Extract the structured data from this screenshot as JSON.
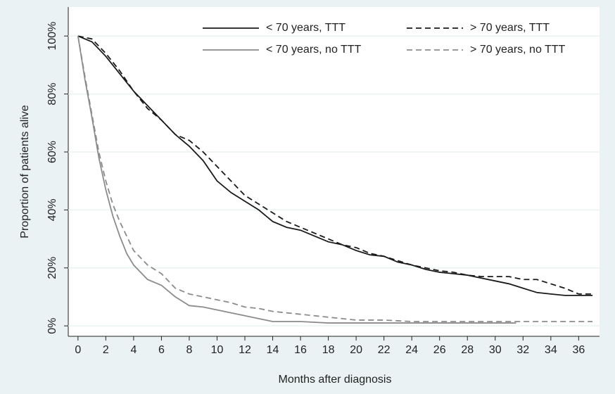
{
  "chart_data": {
    "type": "line",
    "x_label": "Months after diagnosis",
    "y_label": "Proportion of patients alive",
    "xlim": [
      -0.7,
      37.5
    ],
    "ylim": [
      -3.6,
      110
    ],
    "xticks": [
      0,
      2,
      4,
      6,
      8,
      10,
      12,
      14,
      16,
      18,
      20,
      22,
      24,
      26,
      28,
      30,
      32,
      34,
      36
    ],
    "yticks": [
      {
        "value": 0,
        "label": "0%"
      },
      {
        "value": 20,
        "label": "20%"
      },
      {
        "value": 40,
        "label": "40%"
      },
      {
        "value": 60,
        "label": "60%"
      },
      {
        "value": 80,
        "label": "80%"
      },
      {
        "value": 100,
        "label": "100%"
      }
    ],
    "grid": true,
    "series": [
      {
        "name": "< 70 years, TTT",
        "color": "#1a1a1a",
        "dashed": false,
        "x": [
          0,
          1,
          2,
          3,
          4,
          5,
          6,
          7,
          8,
          9,
          10,
          11,
          12,
          13,
          14,
          15,
          16,
          17,
          18,
          19,
          20,
          21,
          22,
          23,
          24,
          25,
          26,
          27,
          28,
          29,
          30,
          31,
          32,
          33,
          34,
          35,
          36,
          37
        ],
        "values": [
          100,
          98,
          93,
          87,
          81,
          76,
          71,
          66,
          62,
          57,
          50,
          46,
          43,
          40,
          36,
          34,
          33,
          31,
          29,
          28,
          26,
          24.5,
          24,
          22,
          21,
          19.5,
          18.5,
          18,
          17.5,
          16.5,
          15.5,
          14.5,
          13,
          11.5,
          11,
          10.5,
          10.5,
          10.5
        ]
      },
      {
        "name": "< 70 years, no TTT",
        "color": "#8c8c8c",
        "dashed": false,
        "x": [
          0,
          0.5,
          1,
          1.5,
          2,
          2.5,
          3,
          3.5,
          4,
          5,
          6,
          7,
          8,
          9,
          10,
          11,
          12,
          13,
          14,
          16,
          18,
          20,
          24,
          28,
          31.5
        ],
        "values": [
          100,
          85,
          72,
          58,
          47,
          38,
          31,
          25,
          21,
          16,
          14,
          10,
          7,
          6.5,
          5.5,
          4.5,
          3.5,
          2.5,
          1.5,
          1.5,
          1,
          1,
          1,
          1,
          1
        ]
      },
      {
        "name": "> 70 years, TTT",
        "color": "#1a1a1a",
        "dashed": true,
        "x": [
          0,
          1,
          2,
          3,
          4,
          5,
          6,
          7,
          8,
          9,
          10,
          11,
          12,
          13,
          14,
          15,
          16,
          17,
          18,
          19,
          20,
          21,
          22,
          23,
          24,
          25,
          26,
          27,
          28,
          29,
          30,
          31,
          32,
          33,
          34,
          35,
          36,
          37
        ],
        "values": [
          100,
          99,
          94,
          88,
          81,
          75,
          71,
          66,
          64,
          60,
          55,
          50,
          45,
          42,
          39,
          36,
          34,
          32,
          30,
          28,
          27,
          25,
          24,
          22.5,
          21,
          20,
          19,
          18.5,
          17.5,
          17,
          17,
          17,
          16,
          16,
          14.5,
          13,
          11,
          11
        ]
      },
      {
        "name": "> 70 years, no TTT",
        "color": "#8c8c8c",
        "dashed": true,
        "x": [
          0,
          0.5,
          1,
          1.5,
          2,
          2.5,
          3,
          3.5,
          4,
          5,
          6,
          7,
          8,
          9,
          10,
          11,
          12,
          13,
          14,
          16,
          18,
          20,
          22,
          24,
          28,
          32,
          37
        ],
        "values": [
          100,
          86,
          73,
          60,
          50,
          42,
          36,
          31,
          26,
          21,
          18,
          13,
          11,
          10,
          9,
          8,
          6.5,
          6,
          5,
          4,
          3,
          2,
          2,
          1.5,
          1.5,
          1.5,
          1.5
        ]
      }
    ]
  }
}
